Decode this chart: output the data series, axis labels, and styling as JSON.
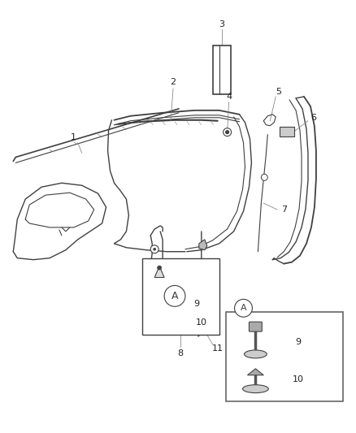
{
  "bg_color": "#ffffff",
  "line_color": "#404040",
  "label_color": "#222222",
  "fig_width": 4.38,
  "fig_height": 5.33,
  "dpi": 100
}
